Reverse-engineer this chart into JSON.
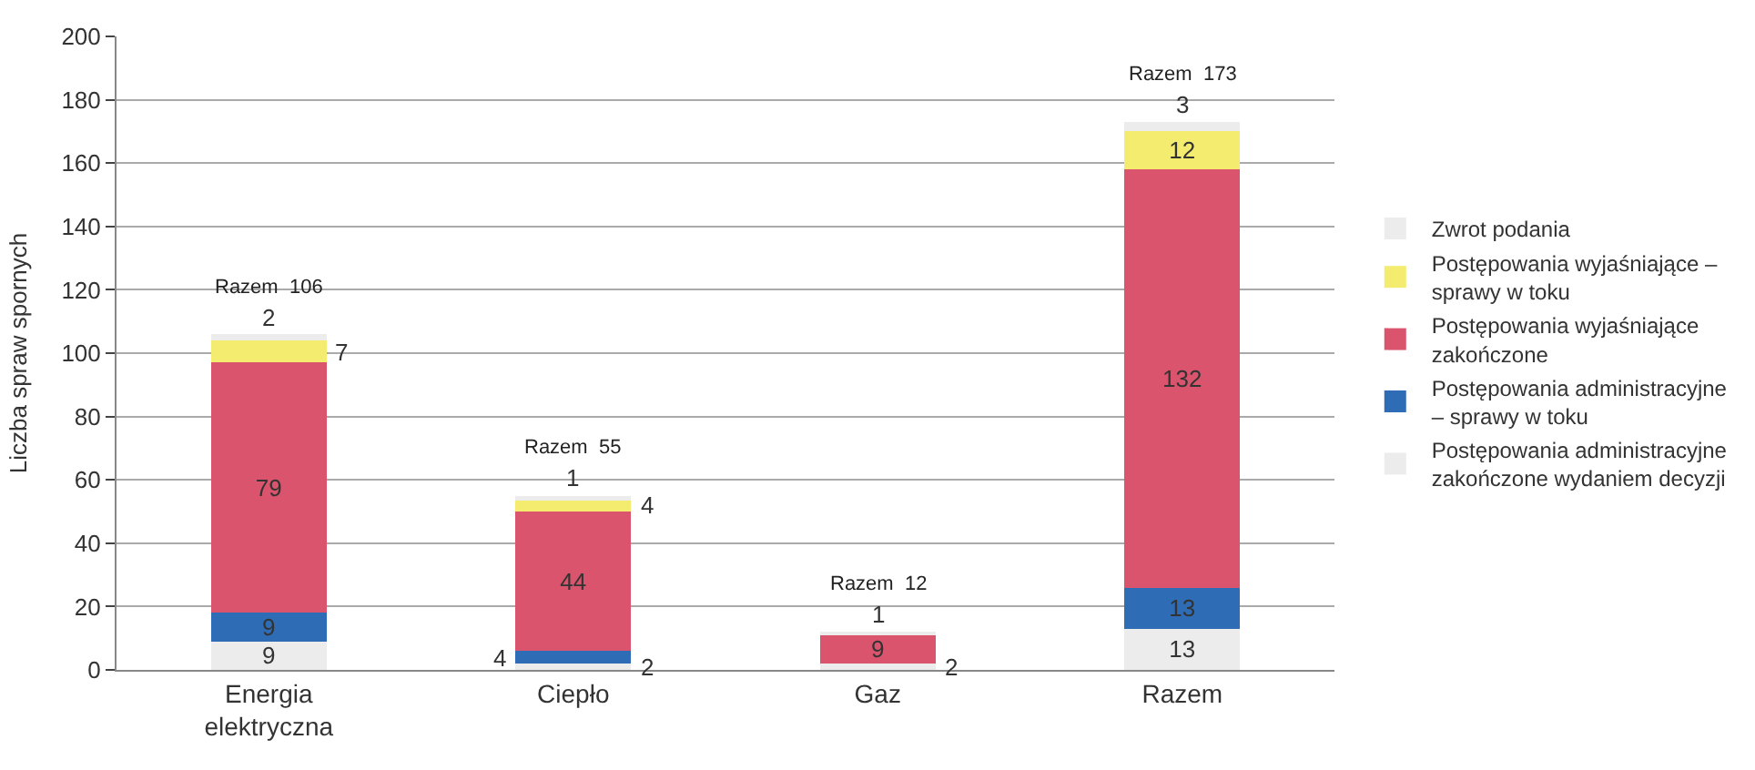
{
  "chart_data": {
    "type": "bar",
    "stacked": true,
    "ylabel": "Liczba spraw spornych",
    "categories": [
      "Energia elektryczna",
      "Ciepło",
      "Gaz",
      "Razem"
    ],
    "series": [
      {
        "name": "Postępowania administracyjne zakończone wydaniem decyzji",
        "color": "#ececec",
        "values": [
          9,
          2,
          2,
          13
        ],
        "value_labels": [
          "9",
          "2",
          "2",
          "13"
        ]
      },
      {
        "name": "Postępowania administracyjne – sprawy w toku",
        "color": "#2e6db5",
        "values": [
          9,
          4,
          0,
          13
        ],
        "value_labels": [
          "9",
          "4",
          null,
          "13"
        ]
      },
      {
        "name": "Postępowania wyjaśniające zakończone",
        "color": "#d9546c",
        "values": [
          79,
          44,
          9,
          132
        ],
        "value_labels": [
          "79",
          "44",
          "9",
          "132"
        ]
      },
      {
        "name": "Postępowania wyjaśniające – sprawy w toku",
        "color": "#f4ec6e",
        "values": [
          7,
          4,
          0,
          12
        ],
        "value_labels": [
          "7",
          "4",
          null,
          "12"
        ]
      },
      {
        "name": "Zwrot podania",
        "color": "#ececec",
        "values": [
          2,
          1,
          1,
          3
        ],
        "value_labels": [
          "2",
          "1",
          "1",
          "3"
        ]
      }
    ],
    "totals": [
      "Razem  106",
      "Razem  55",
      "Razem  12",
      "Razem  173"
    ],
    "ylim": [
      0,
      200
    ],
    "yticks": [
      0,
      20,
      40,
      60,
      80,
      100,
      120,
      140,
      160,
      180,
      200
    ],
    "grid": "y",
    "legend": "right"
  }
}
